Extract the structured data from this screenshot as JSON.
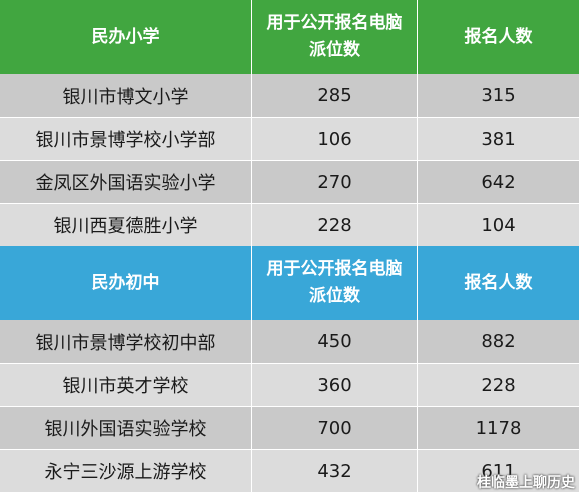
{
  "sections": [
    {
      "header": {
        "col1": "民办小学",
        "col2": "用于公开报名电脑派位数",
        "col3": "报名人数"
      },
      "rows": [
        {
          "name": "银川市博文小学",
          "seats": "285",
          "applicants": "315"
        },
        {
          "name": "银川市景博学校小学部",
          "seats": "106",
          "applicants": "381"
        },
        {
          "name": "金凤区外国语实验小学",
          "seats": "270",
          "applicants": "642"
        },
        {
          "name": "银川西夏德胜小学",
          "seats": "228",
          "applicants": "104"
        }
      ]
    },
    {
      "header": {
        "col1": "民办初中",
        "col2": "用于公开报名电脑派位数",
        "col3": "报名人数"
      },
      "rows": [
        {
          "name": "银川市景博学校初中部",
          "seats": "450",
          "applicants": "882"
        },
        {
          "name": "银川市英才学校",
          "seats": "360",
          "applicants": "228"
        },
        {
          "name": "银川外国语实验学校",
          "seats": "700",
          "applicants": "1178"
        },
        {
          "name": "永宁三沙源上游学校",
          "seats": "432",
          "applicants": "611"
        }
      ]
    }
  ],
  "watermark": "桂临墨上聊历史",
  "colors": {
    "primary_header": "#41a640",
    "middle_header": "#39a7d8",
    "row_dark": "#c9c9c9",
    "row_light": "#dcdcdc"
  }
}
